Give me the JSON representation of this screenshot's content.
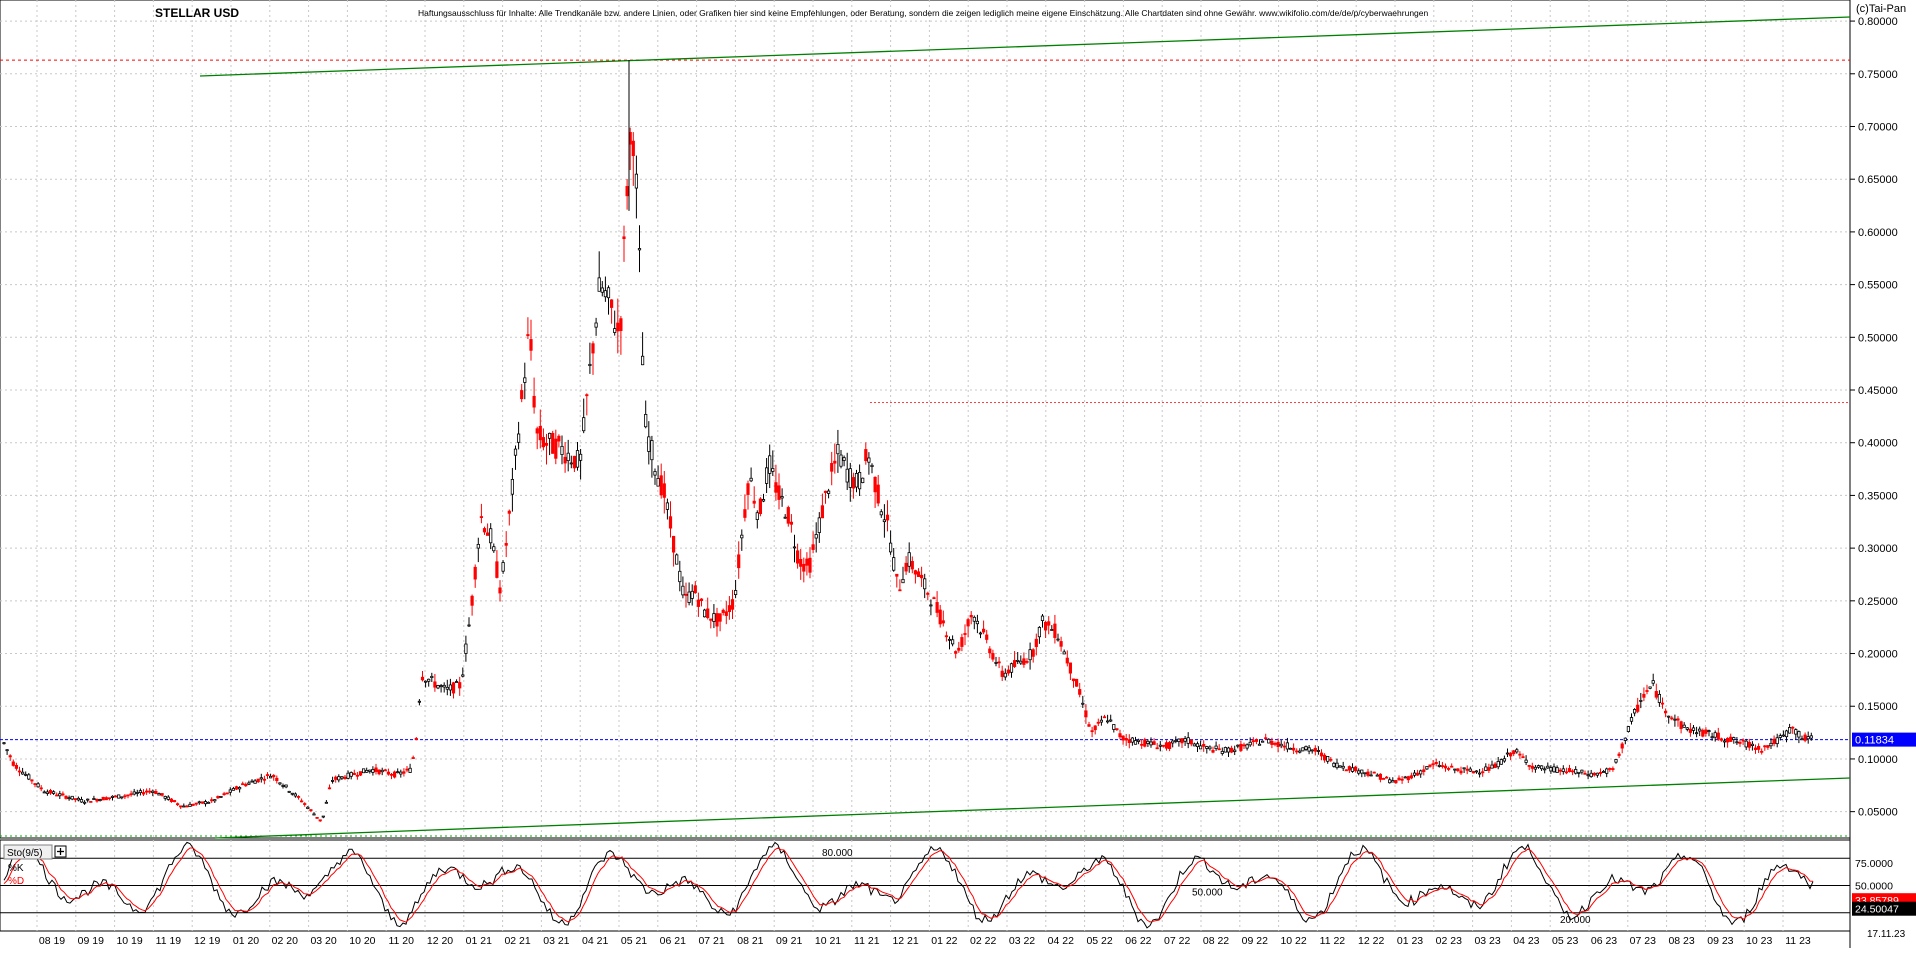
{
  "header": {
    "title": "STELLAR USD",
    "disclaimer": "Haftungsausschluss für Inhalte: Alle Trendkanäle bzw. andere Linien, oder Grafiken hier sind keine Empfehlungen, oder Beratung, sondern die zeigen lediglich meine eigene Einschätzung. Alle Chartdaten sind ohne Gewähr. www.wikifolio.com/de/de/p/cyberwaehrungen",
    "copyright": "(c)Tai-Pan"
  },
  "colors": {
    "up_candle": "#000000",
    "down_candle": "#ff0000",
    "trend_line": "#008000",
    "resistance_line": "#ff0000",
    "current_price_line": "#0000ff",
    "current_price_label_bg": "#0000ff",
    "stoch_k": "#000000",
    "stoch_d": "#ff0000",
    "grid": "#c8c8c8"
  },
  "chart_data": [
    {
      "type": "candlestick",
      "title": "STELLAR USD",
      "ylim": [
        0.025,
        0.82
      ],
      "y_ticks": [
        "0.05000",
        "0.10000",
        "0.15000",
        "0.20000",
        "0.25000",
        "0.30000",
        "0.35000",
        "0.40000",
        "0.45000",
        "0.50000",
        "0.55000",
        "0.60000",
        "0.65000",
        "0.70000",
        "0.75000",
        "0.80000"
      ],
      "x_ticks": [
        "08 19",
        "09 19",
        "10 19",
        "11 19",
        "12 19",
        "01 20",
        "02 20",
        "03 20",
        "10 20",
        "11 20",
        "12 20",
        "01 21",
        "02 21",
        "03 21",
        "04 21",
        "05 21",
        "06 21",
        "07 21",
        "08 21",
        "09 21",
        "10 21",
        "11 21",
        "12 21",
        "01 22",
        "02 22",
        "03 22",
        "04 22",
        "05 22",
        "06 22",
        "07 22",
        "08 22",
        "09 22",
        "10 22",
        "11 22",
        "12 22",
        "01 23",
        "02 23",
        "03 23",
        "04 23",
        "05 23",
        "06 23",
        "07 23",
        "08 23",
        "09 23",
        "10 23",
        "11 23"
      ],
      "current_price": {
        "value": 0.11834,
        "label": "0.11834"
      },
      "resistance_lines": [
        0.763,
        0.025
      ],
      "price_path_approx": [
        [
          0,
          0.115
        ],
        [
          10,
          0.095
        ],
        [
          40,
          0.07
        ],
        [
          80,
          0.06
        ],
        [
          120,
          0.065
        ],
        [
          150,
          0.07
        ],
        [
          180,
          0.055
        ],
        [
          210,
          0.06
        ],
        [
          240,
          0.075
        ],
        [
          270,
          0.085
        ],
        [
          300,
          0.06
        ],
        [
          320,
          0.04
        ],
        [
          330,
          0.08
        ],
        [
          370,
          0.09
        ],
        [
          395,
          0.085
        ],
        [
          410,
          0.09
        ],
        [
          415,
          0.12
        ],
        [
          420,
          0.18
        ],
        [
          445,
          0.165
        ],
        [
          460,
          0.17
        ],
        [
          470,
          0.24
        ],
        [
          480,
          0.33
        ],
        [
          490,
          0.31
        ],
        [
          500,
          0.26
        ],
        [
          510,
          0.34
        ],
        [
          520,
          0.43
        ],
        [
          528,
          0.5
        ],
        [
          532,
          0.48
        ],
        [
          535,
          0.41
        ],
        [
          545,
          0.4
        ],
        [
          560,
          0.395
        ],
        [
          580,
          0.38
        ],
        [
          590,
          0.47
        ],
        [
          600,
          0.55
        ],
        [
          610,
          0.53
        ],
        [
          620,
          0.5
        ],
        [
          628,
          0.66
        ],
        [
          633,
          0.7
        ],
        [
          638,
          0.62
        ],
        [
          645,
          0.42
        ],
        [
          655,
          0.38
        ],
        [
          665,
          0.35
        ],
        [
          675,
          0.3
        ],
        [
          685,
          0.25
        ],
        [
          695,
          0.26
        ],
        [
          705,
          0.24
        ],
        [
          720,
          0.23
        ],
        [
          735,
          0.25
        ],
        [
          750,
          0.37
        ],
        [
          760,
          0.33
        ],
        [
          770,
          0.38
        ],
        [
          780,
          0.35
        ],
        [
          790,
          0.33
        ],
        [
          800,
          0.29
        ],
        [
          810,
          0.28
        ],
        [
          820,
          0.32
        ],
        [
          830,
          0.36
        ],
        [
          840,
          0.39
        ],
        [
          850,
          0.37
        ],
        [
          860,
          0.36
        ],
        [
          870,
          0.39
        ],
        [
          880,
          0.35
        ],
        [
          890,
          0.32
        ],
        [
          900,
          0.26
        ],
        [
          910,
          0.29
        ],
        [
          920,
          0.275
        ],
        [
          935,
          0.25
        ],
        [
          960,
          0.2
        ],
        [
          975,
          0.24
        ],
        [
          990,
          0.21
        ],
        [
          1005,
          0.18
        ],
        [
          1020,
          0.19
        ],
        [
          1035,
          0.2
        ],
        [
          1045,
          0.23
        ],
        [
          1060,
          0.22
        ],
        [
          1080,
          0.17
        ],
        [
          1095,
          0.125
        ],
        [
          1110,
          0.14
        ],
        [
          1125,
          0.12
        ],
        [
          1150,
          0.115
        ],
        [
          1170,
          0.112
        ],
        [
          1190,
          0.118
        ],
        [
          1210,
          0.11
        ],
        [
          1230,
          0.108
        ],
        [
          1250,
          0.112
        ],
        [
          1270,
          0.118
        ],
        [
          1300,
          0.11
        ],
        [
          1320,
          0.108
        ],
        [
          1340,
          0.095
        ],
        [
          1360,
          0.09
        ],
        [
          1380,
          0.085
        ],
        [
          1400,
          0.078
        ],
        [
          1420,
          0.085
        ],
        [
          1440,
          0.095
        ],
        [
          1460,
          0.09
        ],
        [
          1480,
          0.088
        ],
        [
          1500,
          0.092
        ],
        [
          1520,
          0.108
        ],
        [
          1540,
          0.092
        ],
        [
          1560,
          0.09
        ],
        [
          1580,
          0.088
        ],
        [
          1600,
          0.085
        ],
        [
          1620,
          0.09
        ],
        [
          1640,
          0.14
        ],
        [
          1650,
          0.16
        ],
        [
          1660,
          0.17
        ],
        [
          1670,
          0.15
        ],
        [
          1690,
          0.13
        ],
        [
          1710,
          0.125
        ],
        [
          1730,
          0.12
        ],
        [
          1750,
          0.115
        ],
        [
          1770,
          0.11
        ],
        [
          1790,
          0.12
        ],
        [
          1800,
          0.13
        ],
        [
          1810,
          0.12
        ],
        [
          1820,
          0.11834
        ]
      ]
    },
    {
      "type": "line",
      "title": "Sto(9/5)",
      "series": [
        {
          "name": "%K"
        },
        {
          "name": "%D"
        }
      ],
      "ylim": [
        0,
        100
      ],
      "y_ticks": [
        "75.0000",
        "50.0000"
      ],
      "levels": [
        20,
        50,
        80
      ],
      "annotations": [
        "80.000",
        "50.000",
        "20.000"
      ],
      "current_k": {
        "value": 33.85789,
        "label": "33.85789"
      },
      "current_d": {
        "value": 24.50047,
        "label": "24.50047"
      }
    }
  ],
  "footer": {
    "date": "17.11.23"
  }
}
